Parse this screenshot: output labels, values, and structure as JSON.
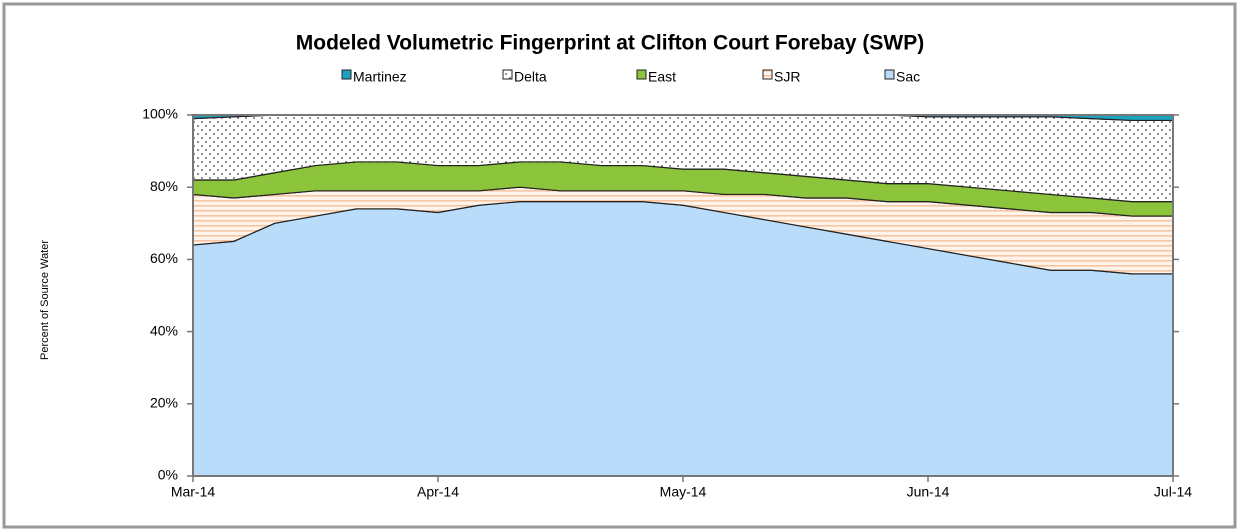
{
  "chart_data": {
    "type": "stacked_area",
    "title": "Modeled Volumetric Fingerprint at Clifton Court Forebay (SWP)",
    "y_label": "Percent of Source Water",
    "categories": [
      "Mar-14",
      null,
      null,
      null,
      null,
      null,
      "Apr-14",
      null,
      null,
      null,
      null,
      null,
      "May-14",
      null,
      null,
      null,
      null,
      null,
      "Jun-14",
      null,
      null,
      null,
      null,
      null,
      "Jul-14"
    ],
    "series": [
      {
        "name": "Martinez",
        "color": "#1ba3bf",
        "pattern": "solid",
        "values": [
          1,
          0.5,
          0,
          0,
          0,
          0,
          0,
          0,
          0,
          0,
          0,
          0,
          0,
          0,
          0,
          0,
          0,
          0,
          0.5,
          0.5,
          0.5,
          0.5,
          1,
          1.5,
          1.5
        ]
      },
      {
        "name": "Delta",
        "color": "#ffffff",
        "pattern": "dots",
        "values": [
          17,
          17.5,
          16,
          14,
          13,
          13,
          14,
          14,
          13,
          13,
          14,
          14,
          15,
          15,
          16,
          17,
          18,
          19,
          18.5,
          19.5,
          20.5,
          21.5,
          22,
          22.5,
          22.5
        ]
      },
      {
        "name": "East",
        "color": "#8cc43c",
        "pattern": "solid",
        "values": [
          4,
          5,
          6,
          7,
          8,
          8,
          7,
          7,
          7,
          8,
          7,
          7,
          6,
          7,
          6,
          6,
          5,
          5,
          5,
          5,
          5,
          5,
          4,
          4,
          4
        ]
      },
      {
        "name": "SJR",
        "color": "#fde6d6",
        "pattern": "stripes",
        "values": [
          14,
          12,
          8,
          7,
          5,
          5,
          6,
          4,
          4,
          3,
          3,
          3,
          4,
          5,
          7,
          8,
          10,
          11,
          13,
          14,
          15,
          16,
          16,
          16,
          16
        ]
      },
      {
        "name": "Sac",
        "color": "#b8dcfa",
        "pattern": "solid",
        "values": [
          64,
          65,
          70,
          72,
          74,
          74,
          73,
          75,
          76,
          76,
          76,
          76,
          75,
          73,
          71,
          69,
          67,
          65,
          63,
          61,
          59,
          57,
          57,
          56,
          56
        ]
      }
    ],
    "ylim": [
      0,
      100
    ],
    "yticks": [
      {
        "value": 0,
        "label": "0%"
      },
      {
        "value": 20,
        "label": "20%"
      },
      {
        "value": 40,
        "label": "40%"
      },
      {
        "value": 60,
        "label": "60%"
      },
      {
        "value": 80,
        "label": "80%"
      },
      {
        "value": 100,
        "label": "100%"
      }
    ],
    "grid": false
  }
}
